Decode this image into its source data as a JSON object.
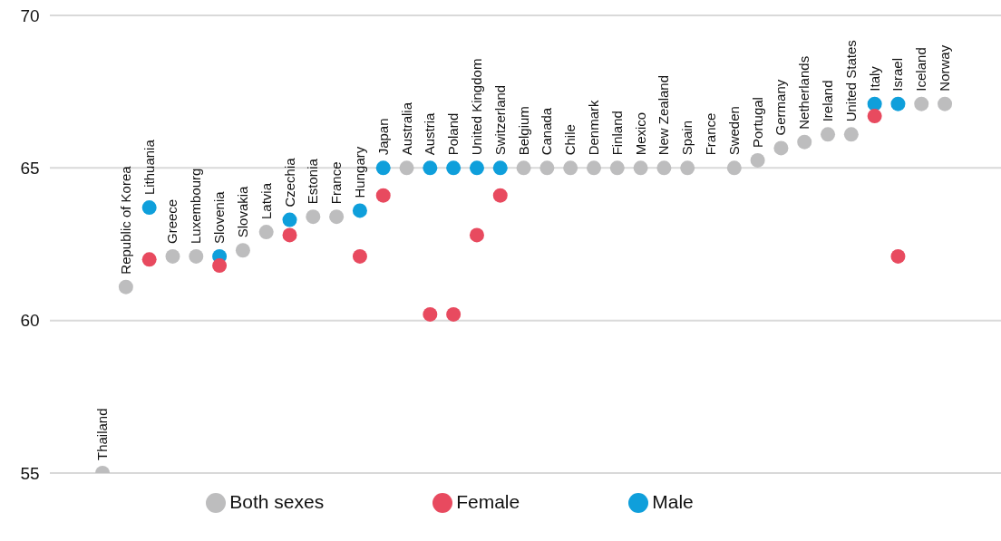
{
  "chart_data": {
    "type": "scatter",
    "categories": [
      "Thailand",
      "Republic of Korea",
      "Lithuania",
      "Greece",
      "Luxembourg",
      "Slovenia",
      "Slovakia",
      "Latvia",
      "Czechia",
      "Estonia",
      "France",
      "Hungary",
      "Japan",
      "Australia",
      "Austria",
      "Poland",
      "United Kingdom",
      "Switzerland",
      "Belgium",
      "Canada",
      "Chile",
      "Denmark",
      "Finland",
      "Mexico",
      "New Zealand",
      "Spain",
      "France",
      "Sweden",
      "Portugal",
      "Germany",
      "Netherlands",
      "Ireland",
      "United States",
      "Italy",
      "Israel",
      "Iceland",
      "Norway"
    ],
    "series": [
      {
        "name": "Both sexes",
        "color": "#bdbdbe",
        "values": [
          55,
          61.1,
          null,
          62.1,
          62.1,
          null,
          62.3,
          62.9,
          null,
          63.4,
          63.4,
          null,
          null,
          65,
          null,
          null,
          null,
          null,
          65,
          65,
          65,
          65,
          65,
          65,
          65,
          65,
          null,
          65,
          65.25,
          65.65,
          65.85,
          66.1,
          66.1,
          null,
          null,
          67.1,
          67.1
        ]
      },
      {
        "name": "Male",
        "color": "#0f9fdb",
        "values": [
          null,
          null,
          63.7,
          null,
          null,
          62.1,
          null,
          null,
          63.3,
          null,
          null,
          63.6,
          65,
          null,
          65,
          65,
          65,
          65,
          null,
          null,
          null,
          null,
          null,
          null,
          null,
          null,
          null,
          null,
          null,
          null,
          null,
          null,
          null,
          67.1,
          67.1,
          null,
          null
        ]
      },
      {
        "name": "Female",
        "color": "#e84a5f",
        "values": [
          null,
          null,
          62,
          null,
          null,
          61.8,
          null,
          null,
          62.8,
          null,
          null,
          62.1,
          64.1,
          null,
          60.2,
          60.2,
          62.8,
          64.1,
          null,
          null,
          null,
          null,
          null,
          null,
          null,
          null,
          null,
          null,
          null,
          null,
          null,
          null,
          null,
          66.7,
          62.1,
          null,
          null
        ]
      }
    ],
    "ylim": [
      55,
      70
    ],
    "yticks": [
      55,
      60,
      65,
      70
    ],
    "grid": "y",
    "legend": "bottom",
    "marker": "circle"
  }
}
